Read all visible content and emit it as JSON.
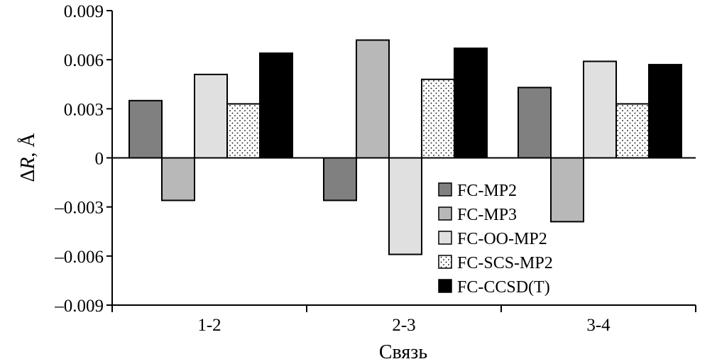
{
  "chart_data": {
    "type": "bar",
    "categories": [
      "1-2",
      "2-3",
      "3-4"
    ],
    "series": [
      {
        "name": "FC-MP2",
        "values": [
          0.0035,
          -0.0026,
          0.0043
        ],
        "fill": "#808080",
        "pattern": "solid"
      },
      {
        "name": "FC-MP3",
        "values": [
          -0.0026,
          0.0072,
          -0.0039
        ],
        "fill": "#b8b8b8",
        "pattern": "solid"
      },
      {
        "name": "FC-OO-MP2",
        "values": [
          0.0051,
          -0.0059,
          0.0059
        ],
        "fill": "#e0e0e0",
        "pattern": "solid"
      },
      {
        "name": "FC-SCS-MP2",
        "values": [
          0.0033,
          0.0048,
          0.0033
        ],
        "fill": "#ffffff",
        "pattern": "dots"
      },
      {
        "name": "FC-CCSD(T)",
        "values": [
          0.0064,
          0.0067,
          0.0057
        ],
        "fill": "#000000",
        "pattern": "solid"
      }
    ],
    "title": "",
    "xlabel": "Связь",
    "ylabel_symbol": "Δ",
    "ylabel_var": "R",
    "ylabel_unit": ", Å",
    "ylim": [
      -0.009,
      0.009
    ],
    "yticks": [
      0.009,
      0.006,
      0.003,
      0,
      -0.003,
      -0.006,
      -0.009
    ],
    "ytick_labels": [
      "0.009",
      "0.006",
      "0.003",
      "0",
      "–0.003",
      "–0.006",
      "–0.009"
    ],
    "grid": false,
    "legend_position": "lower-right"
  }
}
